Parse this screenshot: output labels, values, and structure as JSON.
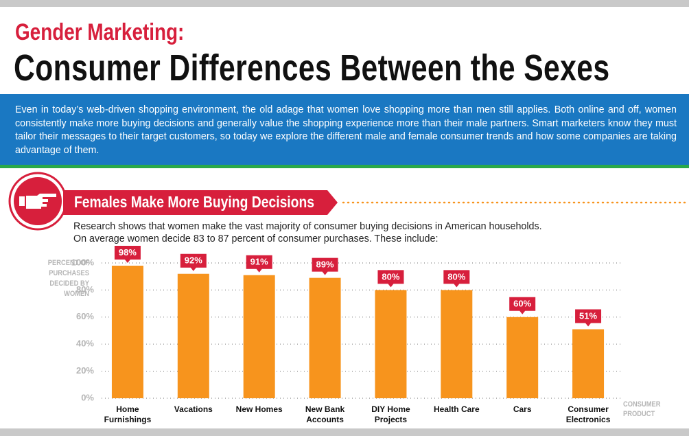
{
  "header": {
    "title": "Gender Marketing:",
    "subtitle": "Consumer Differences Between the Sexes",
    "intro": "Even in today’s web-driven shopping environment, the old adage that women love shopping more than men still applies. Both online and off, women consistently make more buying decisions and generally value the shopping experience more than their male partners. Smart marketers know they must tailor their messages to their target customers, so today we explore the different male and female consumer trends and how some companies are taking advantage of them."
  },
  "section": {
    "title": "Females Make More Buying Decisions",
    "description": [
      "Research shows that women make the vast majority of consumer buying decisions in American households.",
      "On average women decide 83 to 87 percent of consumer purchases. These include:"
    ]
  },
  "chart_data": {
    "type": "bar",
    "y_label": "PERCENT OF PURCHASES DECIDED BY WOMEN",
    "x_label": "CONSUMER PRODUCT",
    "categories": [
      "Home Furnishings",
      "Vacations",
      "New Homes",
      "New Bank Accounts",
      "DIY Home Projects",
      "Health Care",
      "Cars",
      "Consumer Electronics"
    ],
    "values": [
      98,
      92,
      91,
      89,
      80,
      80,
      60,
      51
    ],
    "value_labels": [
      "98%",
      "92%",
      "91%",
      "89%",
      "80%",
      "80%",
      "60%",
      "51%"
    ],
    "color": "#f7941d",
    "label_color": "#d71f3c",
    "ylim": [
      0,
      100
    ],
    "yticks": [
      {
        "value": 0,
        "label": "0%"
      },
      {
        "value": 20,
        "label": "20%"
      },
      {
        "value": 40,
        "label": "40%"
      },
      {
        "value": 60,
        "label": "60%"
      },
      {
        "value": 80,
        "label": "80%"
      },
      {
        "value": 100,
        "label": "100%"
      }
    ],
    "grid": true
  }
}
